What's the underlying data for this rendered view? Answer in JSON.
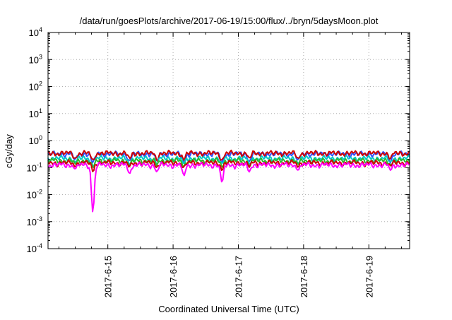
{
  "chart_data": {
    "type": "line",
    "title": "/data/run/goesPlots/archive/2017-06-19/15:00/flux/../bryn/5daysMoon.plot",
    "xlabel": "Coordinated Universal Time (UTC)",
    "ylabel": "cGy/day",
    "yscale": "log",
    "ylim": [
      0.0001,
      10000
    ],
    "xlim": [
      "2017-06-14 02:00",
      "2017-06-19 15:00"
    ],
    "grid": true,
    "y_ticks": [
      {
        "base": "10",
        "exp": "4",
        "value": 10000
      },
      {
        "base": "10",
        "exp": "3",
        "value": 1000
      },
      {
        "base": "10",
        "exp": "2",
        "value": 100
      },
      {
        "base": "10",
        "exp": "1",
        "value": 10
      },
      {
        "base": "10",
        "exp": "0",
        "value": 1
      },
      {
        "base": "10",
        "exp": "-1",
        "value": 0.1
      },
      {
        "base": "10",
        "exp": "-2",
        "value": 0.01
      },
      {
        "base": "10",
        "exp": "-3",
        "value": 0.001
      },
      {
        "base": "10",
        "exp": "-4",
        "value": 0.0001
      }
    ],
    "x_ticks": [
      {
        "label": "2017-6-15",
        "value": "2017-06-15 00:00"
      },
      {
        "label": "2017-6-16",
        "value": "2017-06-16 00:00"
      },
      {
        "label": "2017-6-17",
        "value": "2017-06-17 00:00"
      },
      {
        "label": "2017-6-18",
        "value": "2017-06-18 00:00"
      },
      {
        "label": "2017-6-19",
        "value": "2017-06-19 00:00"
      }
    ],
    "series": [
      {
        "color": "#3050ff",
        "base": 0.32,
        "dip_scale": 0.6
      },
      {
        "color": "#cc0000",
        "base": 0.34,
        "dip_scale": 0.5
      },
      {
        "color": "#00c8c8",
        "base": 0.22,
        "dip_scale": 0.5
      },
      {
        "color": "#2db82d",
        "base": 0.18,
        "dip_scale": 0.5
      },
      {
        "color": "#cc0000",
        "base": 0.15,
        "dip_scale": 0.5
      },
      {
        "color": "#ff00ff",
        "base": 0.125,
        "dip_scale": 1.0
      }
    ],
    "dips": [
      {
        "x": "2017-06-14 18:30",
        "value": 0.0022
      },
      {
        "x": "2017-06-16 18:00",
        "value": 0.028
      },
      {
        "x": "2017-06-17 22:00",
        "value": 0.08
      },
      {
        "x": "2017-06-14 12:00",
        "value": 0.09
      },
      {
        "x": "2017-06-15 08:00",
        "value": 0.06
      },
      {
        "x": "2017-06-15 18:00",
        "value": 0.07
      },
      {
        "x": "2017-06-16 04:00",
        "value": 0.05
      },
      {
        "x": "2017-06-17 04:00",
        "value": 0.07
      },
      {
        "x": "2017-06-19 08:00",
        "value": 0.08
      }
    ]
  }
}
